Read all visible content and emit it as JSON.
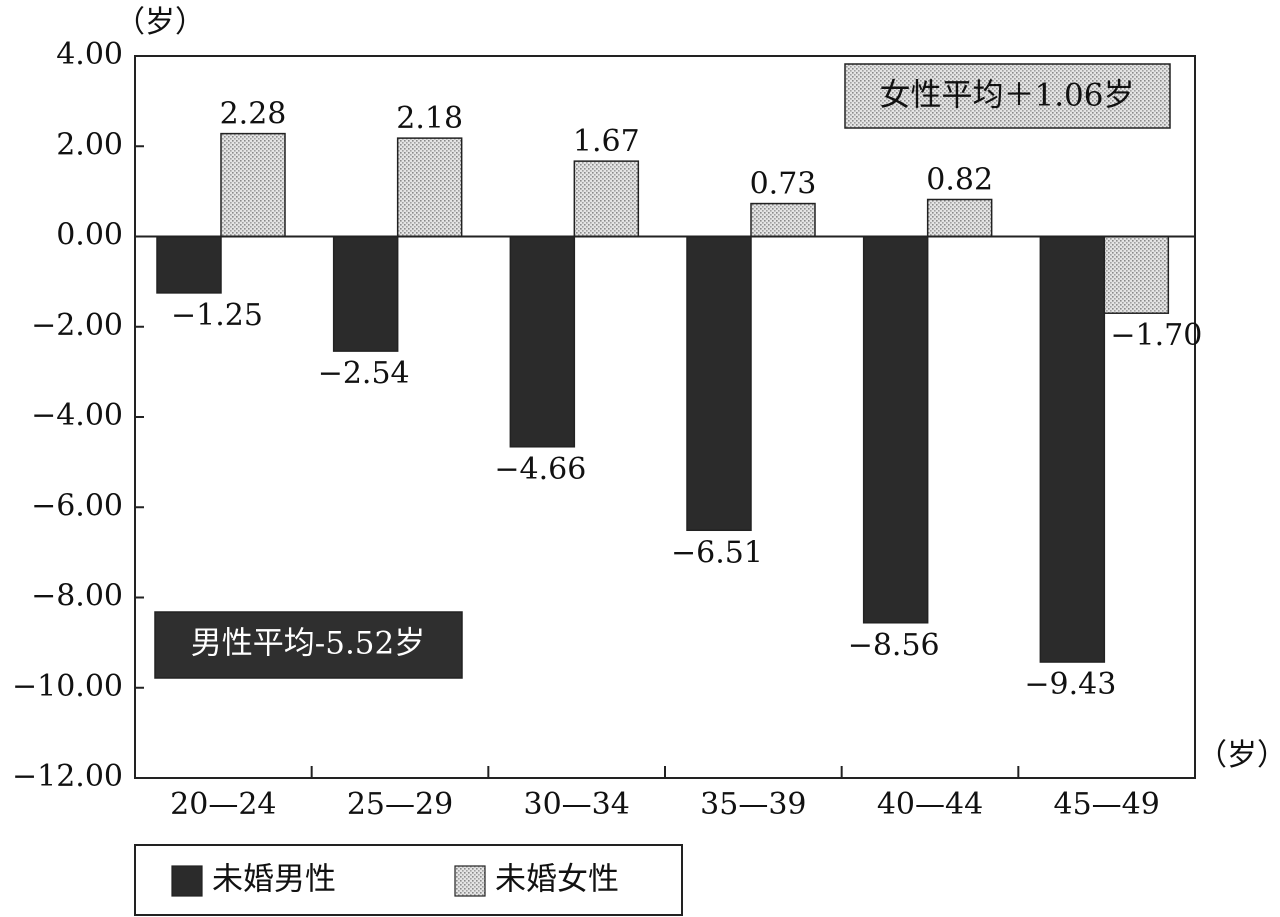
{
  "chart_data": {
    "type": "bar",
    "y_unit_label": "（岁）",
    "x_unit_label": "（岁）",
    "categories": [
      "20—24",
      "25—29",
      "30—34",
      "35—39",
      "40—44",
      "45—49"
    ],
    "ylim": [
      -12,
      4
    ],
    "yticks": [
      4,
      2,
      0,
      -2,
      -4,
      -6,
      -8,
      -10,
      -12
    ],
    "ytick_labels": [
      "4.00",
      "2.00",
      "0.00",
      "−2.00",
      "−4.00",
      "−6.00",
      "−8.00",
      "−10.00",
      "−12.00"
    ],
    "series": [
      {
        "name": "未婚男性",
        "color": "#2b2b2b",
        "values": [
          -1.25,
          -2.54,
          -4.66,
          -6.51,
          -8.56,
          -9.43
        ],
        "labels": [
          "−1.25",
          "−2.54",
          "−4.66",
          "−6.51",
          "−8.56",
          "−9.43"
        ]
      },
      {
        "name": "未婚女性",
        "color": "#d4d4d4",
        "values": [
          2.28,
          2.18,
          1.67,
          0.73,
          0.82,
          -1.7
        ],
        "labels": [
          "2.28",
          "2.18",
          "1.67",
          "0.73",
          "0.82",
          "−1.70"
        ]
      }
    ],
    "annotations": [
      {
        "text": "女性平均＋1.06岁",
        "style": "light",
        "placement": "top-right"
      },
      {
        "text": "男性平均-5.52岁",
        "style": "dark",
        "placement": "bottom-left"
      }
    ],
    "grid": false,
    "legend_placement": "bottom-left"
  }
}
